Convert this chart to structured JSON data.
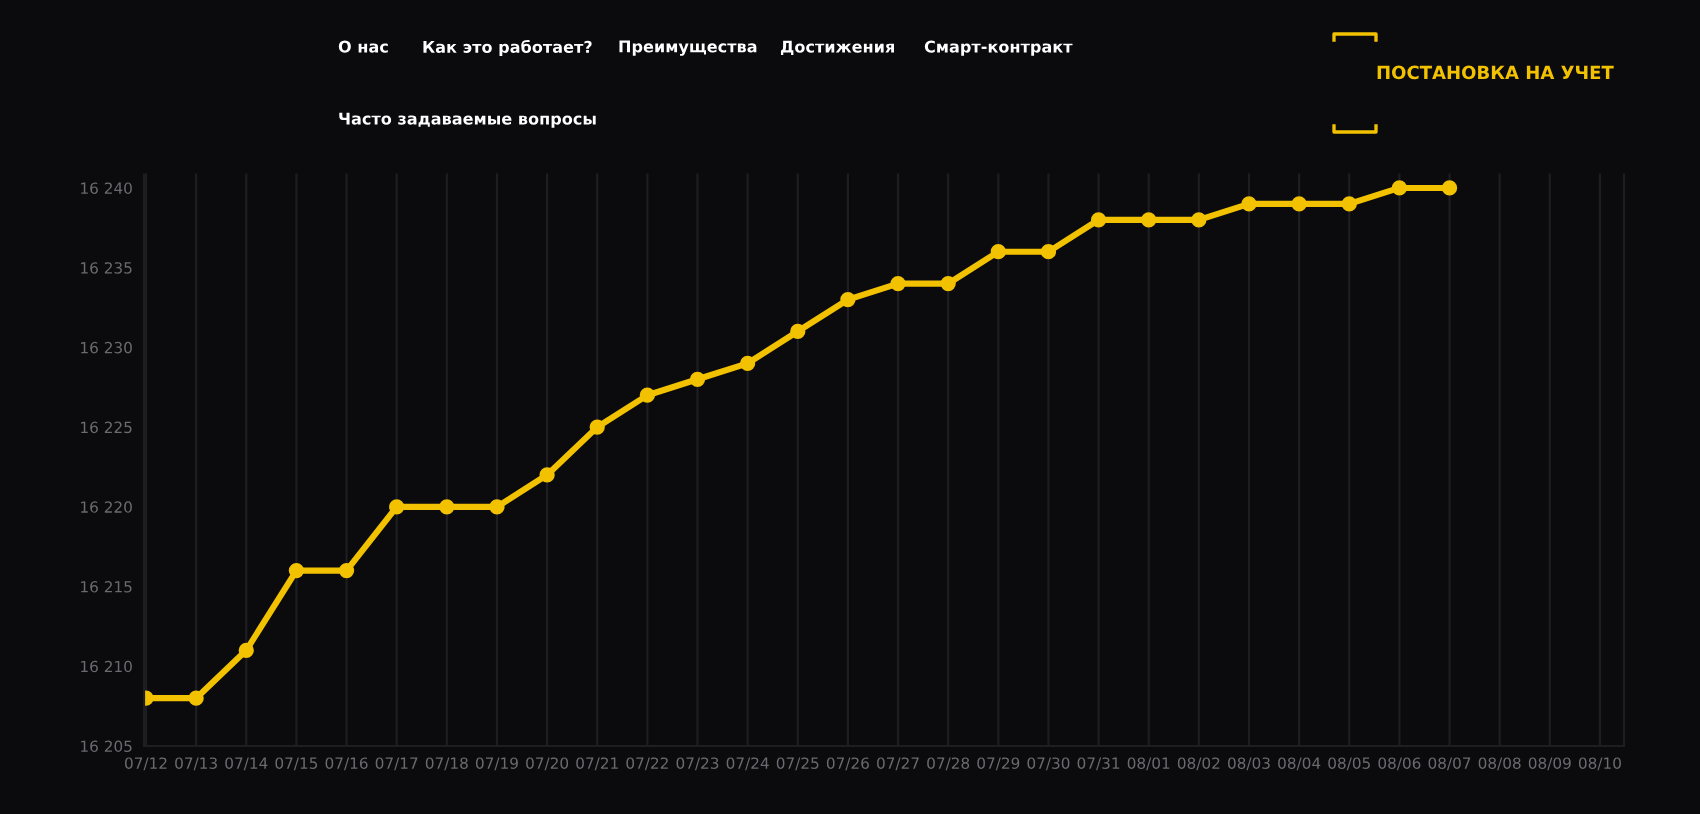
{
  "chart_data": {
    "type": "line",
    "categories": [
      "07/12",
      "07/13",
      "07/14",
      "07/15",
      "07/16",
      "07/17",
      "07/18",
      "07/19",
      "07/20",
      "07/21",
      "07/22",
      "07/23",
      "07/24",
      "07/25",
      "07/26",
      "07/27",
      "07/28",
      "07/29",
      "07/30",
      "07/31",
      "08/01",
      "08/02",
      "08/03",
      "08/04",
      "08/05",
      "08/06",
      "08/07",
      "08/08",
      "08/09",
      "08/10"
    ],
    "series": [
      {
        "color": "#f2c200",
        "values": [
          16208,
          16208,
          16211,
          16216,
          16216,
          16220,
          16220,
          16220,
          16222,
          16225,
          16227,
          16228,
          16229,
          16231,
          16233,
          16234,
          16234,
          16236,
          16236,
          16238,
          16238,
          16238,
          16239,
          16239,
          16239,
          16240,
          16240,
          null,
          null,
          null
        ]
      }
    ],
    "ylim": [
      16205,
      16241
    ],
    "yticks": [
      {
        "value": 16205,
        "label": "16 205"
      },
      {
        "value": 16210,
        "label": "16 210"
      },
      {
        "value": 16215,
        "label": "16 215"
      },
      {
        "value": 16220,
        "label": "16 220"
      },
      {
        "value": 16225,
        "label": "16 225"
      },
      {
        "value": 16230,
        "label": "16 230"
      },
      {
        "value": 16235,
        "label": "16 235"
      },
      {
        "value": 16240,
        "label": "16 240"
      }
    ],
    "grid": "x",
    "marker": "circle",
    "line_style": "solid",
    "legend": false,
    "annotations": [
      "О нас",
      "Как это работает?",
      "Преимущества",
      "Достижения",
      "Смарт-контракт",
      "Часто задаваемые вопросы",
      "ПОСТАНОВКА НА УЧЕТ"
    ]
  }
}
